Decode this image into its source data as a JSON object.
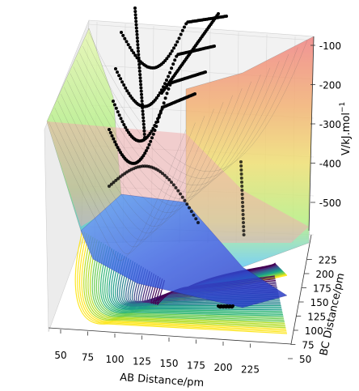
{
  "chart_data": {
    "type": "surface3d",
    "title": "",
    "axes": {
      "x": {
        "label": "AB Distance/pm",
        "range": [
          40,
          240
        ],
        "ticks": [
          "50",
          "75",
          "100",
          "125",
          "150",
          "175",
          "200",
          "225"
        ]
      },
      "y": {
        "label": "BC Distance/pm",
        "range": [
          40,
          240
        ],
        "ticks": [
          "50",
          "75",
          "100",
          "125",
          "150",
          "175",
          "200",
          "225"
        ]
      },
      "z": {
        "label": "V/kJ.mol⁻¹",
        "range": [
          -560,
          -60
        ],
        "ticks": [
          "-500",
          "-400",
          "-300",
          "-200",
          "-100"
        ]
      }
    },
    "surface": {
      "colormap": "jet",
      "contour_colormap": "viridis",
      "minimum_energy_approx": -560,
      "asymptote_energy_approx": -100
    },
    "trajectory_points": [
      {
        "ab": 225,
        "bc": 74,
        "v": -510
      },
      {
        "ab": 200,
        "bc": 74,
        "v": -470
      },
      {
        "ab": 175,
        "bc": 74,
        "v": -430
      },
      {
        "ab": 150,
        "bc": 76,
        "v": -380
      },
      {
        "ab": 125,
        "bc": 80,
        "v": -330
      },
      {
        "ab": 110,
        "bc": 90,
        "v": -300
      },
      {
        "ab": 100,
        "bc": 105,
        "v": -330
      },
      {
        "ab": 95,
        "bc": 125,
        "v": -380
      },
      {
        "ab": 90,
        "bc": 150,
        "v": -420
      },
      {
        "ab": 88,
        "bc": 175,
        "v": -440
      },
      {
        "ab": 86,
        "bc": 200,
        "v": -455
      },
      {
        "ab": 85,
        "bc": 225,
        "v": -460
      }
    ]
  },
  "axis_text": {
    "xlabel": "AB Distance/pm",
    "ylabel": "BC Distance/pm",
    "zlabel": "V/kJ.mol",
    "zlabel_sup": "−1"
  }
}
